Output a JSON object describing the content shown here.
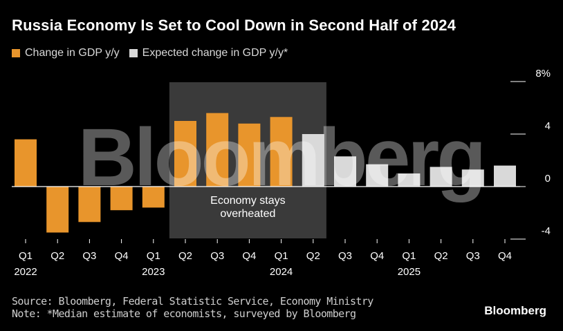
{
  "header": {
    "title": "Russia Economy Is Set to Cool Down in Second Half of 2024"
  },
  "legend": {
    "items": [
      {
        "label": "Change in GDP y/y",
        "color": "#e8952c"
      },
      {
        "label": "Expected change in GDP y/y*",
        "color": "#d9d9d9"
      }
    ]
  },
  "footer": {
    "source": "Source: Bloomberg, Federal Statistic Service, Economy Ministry",
    "note": "Note: *Median estimate of economists, surveyed by Bloomberg",
    "brand": "Bloomberg"
  },
  "watermark": "Bloomberg",
  "chart_data": {
    "type": "bar",
    "categories": [
      "Q1",
      "Q2",
      "Q3",
      "Q4",
      "Q1",
      "Q2",
      "Q3",
      "Q4",
      "Q1",
      "Q2",
      "Q3",
      "Q4",
      "Q1",
      "Q2",
      "Q3",
      "Q4"
    ],
    "year_labels": [
      {
        "index": 0,
        "label": "2022"
      },
      {
        "index": 4,
        "label": "2023"
      },
      {
        "index": 8,
        "label": "2024"
      },
      {
        "index": 12,
        "label": "2025"
      }
    ],
    "series": [
      {
        "name": "Change in GDP y/y",
        "color": "#e8952c",
        "values": [
          3.6,
          -3.5,
          -2.7,
          -1.8,
          -1.6,
          5.0,
          5.6,
          4.8,
          5.3,
          null,
          null,
          null,
          null,
          null,
          null,
          null
        ]
      },
      {
        "name": "Expected change in GDP y/y*",
        "color": "#d9d9d9",
        "values": [
          null,
          null,
          null,
          null,
          null,
          null,
          null,
          null,
          null,
          4.0,
          2.3,
          1.7,
          1.0,
          1.5,
          1.3,
          1.6
        ]
      }
    ],
    "yticks": [
      -4,
      0,
      4,
      8
    ],
    "ytick_labels": [
      "-4",
      "0",
      "4",
      "8%"
    ],
    "ylim": [
      -4,
      8
    ],
    "shaded_range": {
      "from": 5,
      "to": 9
    },
    "annotation": "Economy stays\noverheated",
    "xlabel": "",
    "ylabel": "",
    "grid": false
  }
}
